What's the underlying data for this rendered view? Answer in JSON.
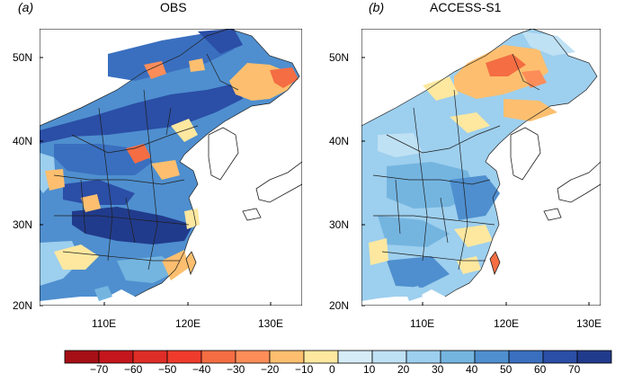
{
  "panels": [
    {
      "letter": "(a)",
      "title": "OBS",
      "coast": "#1f1f1f"
    },
    {
      "letter": "(b)",
      "title": "ACCESS-S1",
      "coast": "#1f1f1f"
    }
  ],
  "axes": {
    "lat_labels": [
      "50N",
      "40N",
      "30N",
      "20N"
    ],
    "lon_labels_a": [
      "110E",
      "120E",
      "130E"
    ],
    "lon_labels_b": [
      "110E",
      "120E",
      "130E"
    ]
  },
  "colorbar": {
    "labels": [
      "-70",
      "-60",
      "-50",
      "-40",
      "-30",
      "-20",
      "-10",
      "0",
      "10",
      "20",
      "30",
      "40",
      "50",
      "60",
      "70"
    ],
    "colors": [
      "#a50f15",
      "#c4161c",
      "#de2d26",
      "#ef3b2c",
      "#f46d43",
      "#fc8d59",
      "#fdbf6f",
      "#fee8a0",
      "#d6ecf7",
      "#bfe1f4",
      "#9dcfee",
      "#74b5e0",
      "#4f8fcf",
      "#3a6fbf",
      "#2b4ea6",
      "#213b8c"
    ]
  },
  "colors": {
    "land_default": "#9dcfee",
    "ocean": "#ffffff"
  }
}
